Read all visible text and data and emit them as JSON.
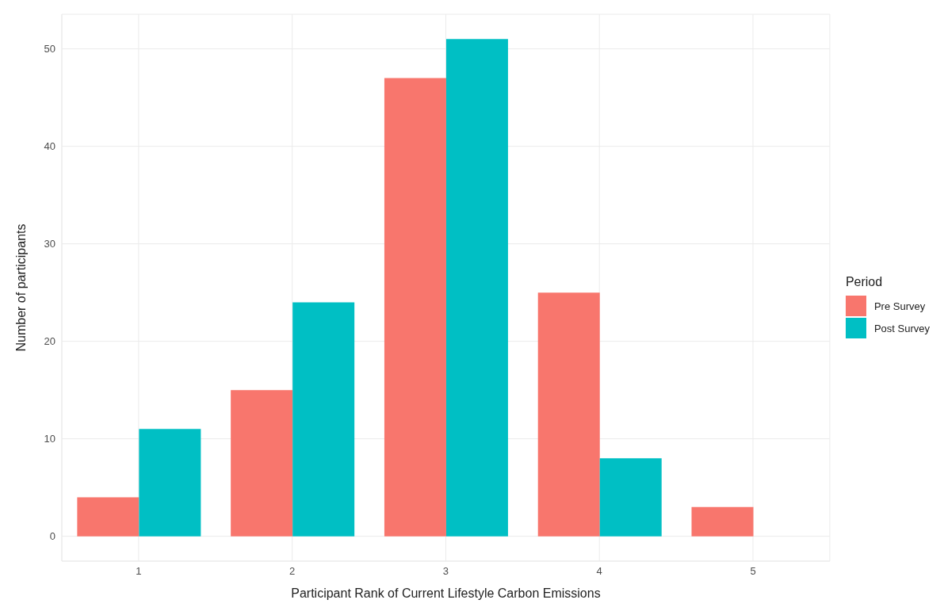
{
  "chart_data": {
    "type": "bar",
    "xlabel": "Participant Rank of Current Lifestyle Carbon Emissions",
    "ylabel": "Number of participants",
    "legend_title": "Period",
    "categories": [
      "1",
      "2",
      "3",
      "4",
      "5"
    ],
    "series": [
      {
        "name": "Pre Survey",
        "color": "#f8766d",
        "values": [
          4,
          15,
          47,
          25,
          3
        ]
      },
      {
        "name": "Post Survey",
        "color": "#00bfc4",
        "values": [
          11,
          24,
          51,
          8,
          null
        ]
      }
    ],
    "ylim": [
      -2.55,
      53.55
    ],
    "yticks": [
      0,
      10,
      20,
      30,
      40,
      50
    ],
    "grid": true,
    "legend": "right"
  }
}
